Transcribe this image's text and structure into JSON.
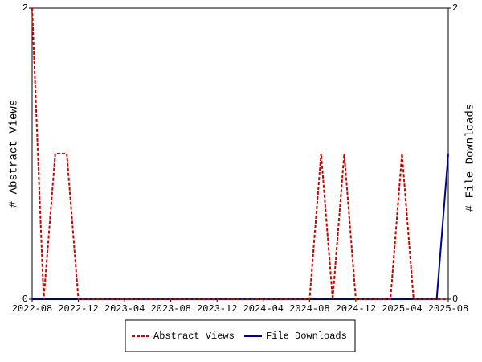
{
  "chart_data": {
    "type": "line",
    "ylabel": "# Abstract Views",
    "y2label": "# File Downloads",
    "x": [
      "2022-08",
      "2022-09",
      "2022-10",
      "2022-11",
      "2022-12",
      "2023-01",
      "2023-02",
      "2023-03",
      "2023-04",
      "2023-05",
      "2023-06",
      "2023-07",
      "2023-08",
      "2023-09",
      "2023-10",
      "2023-11",
      "2023-12",
      "2024-01",
      "2024-02",
      "2024-03",
      "2024-04",
      "2024-05",
      "2024-06",
      "2024-07",
      "2024-08",
      "2024-09",
      "2024-10",
      "2024-11",
      "2024-12",
      "2025-01",
      "2025-02",
      "2025-03",
      "2025-04",
      "2025-05",
      "2025-06",
      "2025-07",
      "2025-08"
    ],
    "xticks": [
      "2022-08",
      "2022-12",
      "2023-04",
      "2023-08",
      "2023-12",
      "2024-04",
      "2024-08",
      "2024-12",
      "2025-04",
      "2025-08"
    ],
    "ylim": [
      0,
      2
    ],
    "yticks": [
      0,
      2
    ],
    "y2lim": [
      0,
      2
    ],
    "y2ticks": [
      0,
      2
    ],
    "series": [
      {
        "name": "Abstract Views",
        "color": "#cc0000",
        "dashed": true,
        "values": [
          2,
          0,
          1,
          1,
          0,
          0,
          0,
          0,
          0,
          0,
          0,
          0,
          0,
          0,
          0,
          0,
          0,
          0,
          0,
          0,
          0,
          0,
          0,
          0,
          0,
          1,
          0,
          1,
          0,
          0,
          0,
          0,
          1,
          0,
          0,
          0,
          0
        ]
      },
      {
        "name": "File Downloads",
        "color": "#000099",
        "axis": "y2",
        "values": [
          0,
          0,
          0,
          0,
          0,
          0,
          0,
          0,
          0,
          0,
          0,
          0,
          0,
          0,
          0,
          0,
          0,
          0,
          0,
          0,
          0,
          0,
          0,
          0,
          0,
          0,
          0,
          0,
          0,
          0,
          0,
          0,
          0,
          0,
          0,
          0,
          1
        ]
      }
    ]
  }
}
